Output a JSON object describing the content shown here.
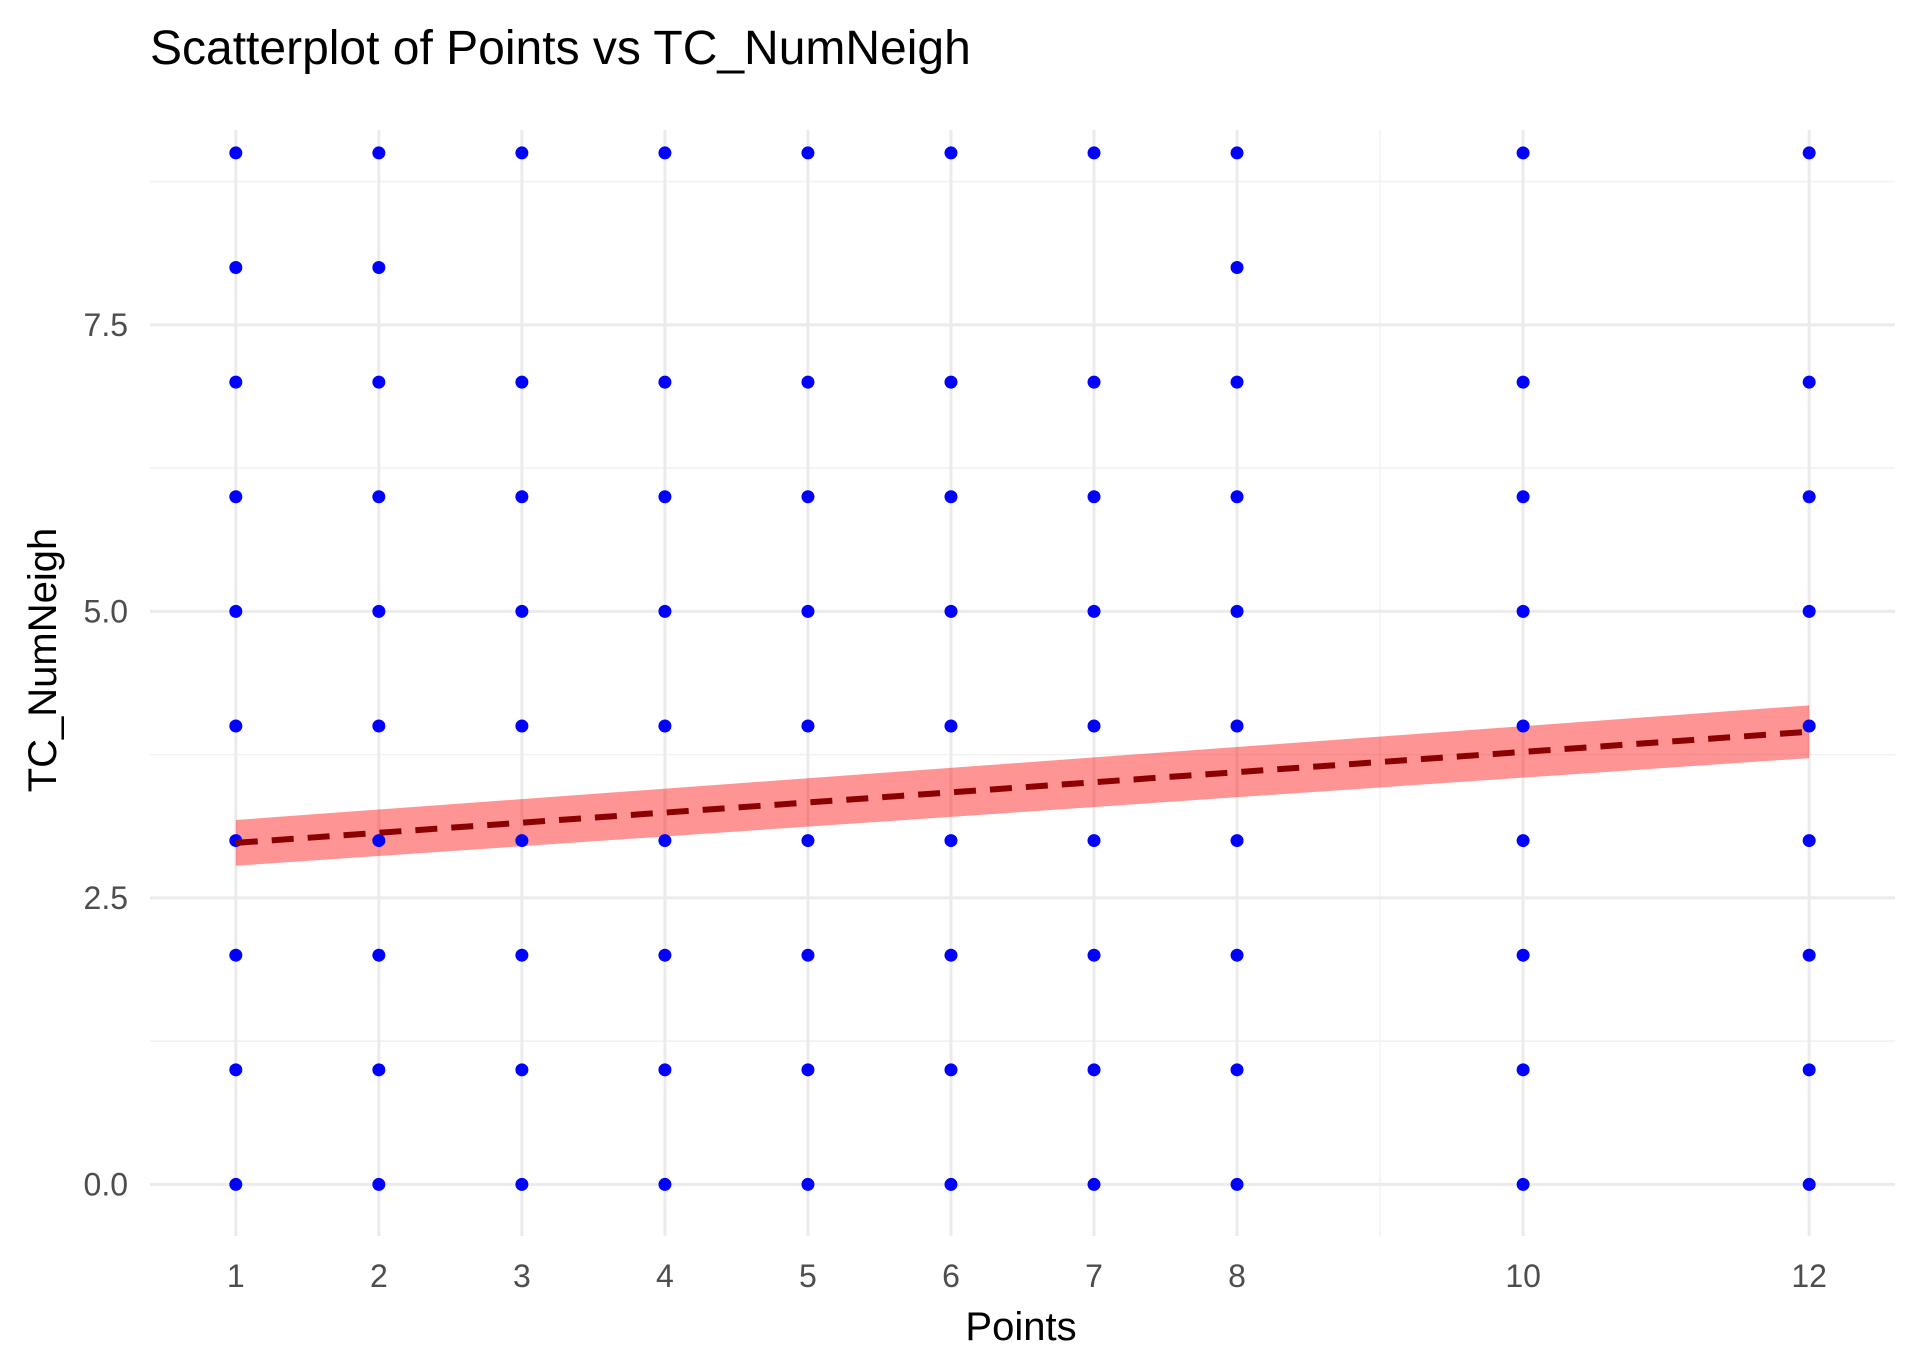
{
  "chart_data": {
    "type": "scatter",
    "title": "Scatterplot of Points vs  TC_NumNeigh",
    "xlabel": "Points",
    "ylabel": "TC_NumNeigh",
    "xlim": [
      0.4,
      12.6
    ],
    "ylim": [
      -0.45,
      9.2
    ],
    "x_ticks": [
      1,
      2,
      3,
      4,
      5,
      6,
      7,
      8,
      10,
      12
    ],
    "x_tick_labels": [
      "1",
      "2",
      "3",
      "4",
      "5",
      "6",
      "7",
      "8",
      "10",
      "12"
    ],
    "x_minor_grid": [
      9
    ],
    "y_ticks": [
      0,
      2.5,
      5,
      7.5
    ],
    "y_tick_labels": [
      "0.0",
      "2.5",
      "5.0",
      "7.5"
    ],
    "y_minor_grid": [
      1.25,
      3.75,
      6.25,
      8.75
    ],
    "grid": true,
    "legend": "none",
    "point_color": "#0000ff",
    "columns": [
      {
        "x": 1,
        "y": [
          0,
          1,
          2,
          3,
          4,
          5,
          6,
          7,
          8,
          9
        ]
      },
      {
        "x": 2,
        "y": [
          0,
          1,
          2,
          3,
          4,
          5,
          6,
          7,
          8,
          9
        ]
      },
      {
        "x": 3,
        "y": [
          0,
          1,
          2,
          3,
          4,
          5,
          6,
          7,
          9
        ]
      },
      {
        "x": 4,
        "y": [
          0,
          1,
          2,
          3,
          4,
          5,
          6,
          7,
          9
        ]
      },
      {
        "x": 5,
        "y": [
          0,
          1,
          2,
          3,
          4,
          5,
          6,
          7,
          9
        ]
      },
      {
        "x": 6,
        "y": [
          0,
          1,
          2,
          3,
          4,
          5,
          6,
          7,
          9
        ]
      },
      {
        "x": 7,
        "y": [
          0,
          1,
          2,
          3,
          4,
          5,
          6,
          7,
          9
        ]
      },
      {
        "x": 8,
        "y": [
          0,
          1,
          2,
          3,
          4,
          5,
          6,
          7,
          8,
          9
        ]
      },
      {
        "x": 10,
        "y": [
          0,
          1,
          2,
          3,
          4,
          5,
          6,
          7,
          9
        ]
      },
      {
        "x": 12,
        "y": [
          0,
          1,
          2,
          3,
          4,
          5,
          6,
          7,
          9
        ]
      }
    ],
    "trend_line": {
      "style": "dashed",
      "color": "#8b0000",
      "x": [
        1,
        12
      ],
      "y": [
        2.98,
        3.95
      ]
    },
    "confidence_band": {
      "color": "#ff0000",
      "opacity": 0.42,
      "x": [
        1,
        12
      ],
      "lower": [
        2.78,
        3.72
      ],
      "upper": [
        3.18,
        4.18
      ]
    }
  }
}
